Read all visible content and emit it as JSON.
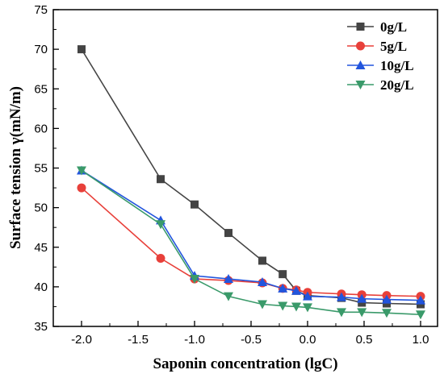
{
  "chart_data": {
    "type": "line",
    "xlabel": "Saponin concentration (lgC)",
    "ylabel": "Surface tension γ(mN/m)",
    "xlim": [
      -2.25,
      1.15
    ],
    "ylim": [
      35,
      75
    ],
    "x_ticks": [
      -2.0,
      -1.5,
      -1.0,
      -0.5,
      0.0,
      0.5,
      1.0
    ],
    "x_tick_labels": [
      "-2.0",
      "-1.5",
      "-1.0",
      "-0.5",
      "0.0",
      "0.5",
      "1.0"
    ],
    "y_ticks": [
      35,
      40,
      45,
      50,
      55,
      60,
      65,
      70,
      75
    ],
    "y_tick_labels": [
      "35",
      "40",
      "45",
      "50",
      "55",
      "60",
      "65",
      "70",
      "75"
    ],
    "grid": false,
    "legend_position": "top-right",
    "series": [
      {
        "name": "0g/L",
        "color": "#444444",
        "marker": "square",
        "x": [
          -2.0,
          -1.3,
          -1.0,
          -0.7,
          -0.4,
          -0.22,
          -0.1,
          0.0,
          0.3,
          0.48,
          0.7,
          1.0
        ],
        "y": [
          70.0,
          53.6,
          50.4,
          46.8,
          43.3,
          41.6,
          39.5,
          38.9,
          38.6,
          38.0,
          37.9,
          37.8
        ]
      },
      {
        "name": "5g/L",
        "color": "#e8403a",
        "marker": "circle",
        "x": [
          -2.0,
          -1.3,
          -1.0,
          -0.7,
          -0.4,
          -0.22,
          -0.1,
          0.0,
          0.3,
          0.48,
          0.7,
          1.0
        ],
        "y": [
          52.5,
          43.6,
          41.0,
          40.8,
          40.5,
          39.8,
          39.6,
          39.3,
          39.1,
          39.0,
          38.9,
          38.8
        ]
      },
      {
        "name": "10g/L",
        "color": "#2255dd",
        "marker": "triangle-up",
        "x": [
          -2.0,
          -1.3,
          -1.0,
          -0.7,
          -0.4,
          -0.22,
          -0.1,
          0.0,
          0.3,
          0.48,
          0.7,
          1.0
        ],
        "y": [
          54.7,
          48.4,
          41.4,
          41.0,
          40.6,
          39.8,
          39.5,
          38.8,
          38.7,
          38.5,
          38.4,
          38.3
        ]
      },
      {
        "name": "20g/L",
        "color": "#3a9a6a",
        "marker": "triangle-down",
        "x": [
          -2.0,
          -1.3,
          -1.0,
          -0.7,
          -0.4,
          -0.22,
          -0.1,
          0.0,
          0.3,
          0.48,
          0.7,
          1.0
        ],
        "y": [
          54.7,
          47.9,
          41.0,
          38.8,
          37.8,
          37.6,
          37.5,
          37.4,
          36.8,
          36.8,
          36.7,
          36.5
        ]
      }
    ]
  }
}
